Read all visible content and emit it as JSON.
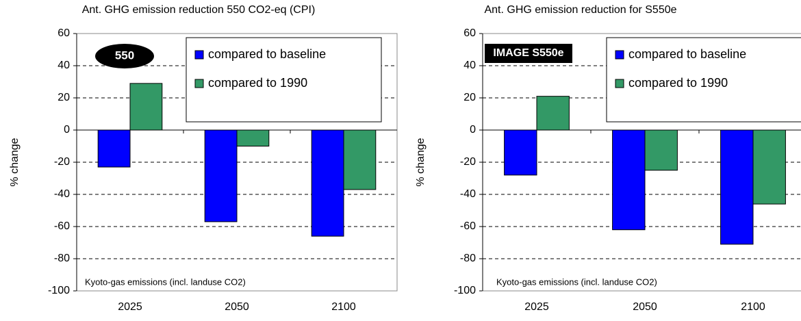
{
  "chart_data": [
    {
      "type": "bar",
      "title": "Ant. GHG emission reduction 550 CO2-eq (CPI)",
      "y_label": "% change",
      "badge": "550",
      "note": "Kyoto-gas emissions (incl. landuse CO2)",
      "categories": [
        "2025",
        "2050",
        "2100"
      ],
      "series": [
        {
          "name": "compared to baseline",
          "color": "#0000ff",
          "values": [
            -23,
            -57,
            -66
          ]
        },
        {
          "name": "compared to 1990",
          "color": "#339966",
          "values": [
            29,
            -10,
            -37
          ]
        }
      ],
      "ylim": [
        -100,
        60
      ],
      "yticks": [
        -100,
        -80,
        -60,
        -40,
        -20,
        0,
        20,
        40,
        60
      ],
      "grid": true
    },
    {
      "type": "bar",
      "title": "Ant. GHG emission reduction for S550e",
      "y_label": "% change",
      "badge": "IMAGE S550e",
      "note": "Kyoto-gas emissions (incl. landuse CO2)",
      "categories": [
        "2025",
        "2050",
        "2100"
      ],
      "series": [
        {
          "name": "compared to baseline",
          "color": "#0000ff",
          "values": [
            -28,
            -62,
            -71
          ]
        },
        {
          "name": "compared to 1990",
          "color": "#339966",
          "values": [
            21,
            -25,
            -46
          ]
        }
      ],
      "ylim": [
        -100,
        60
      ],
      "yticks": [
        -100,
        -80,
        -60,
        -40,
        -20,
        0,
        20,
        40,
        60
      ],
      "grid": true
    }
  ]
}
